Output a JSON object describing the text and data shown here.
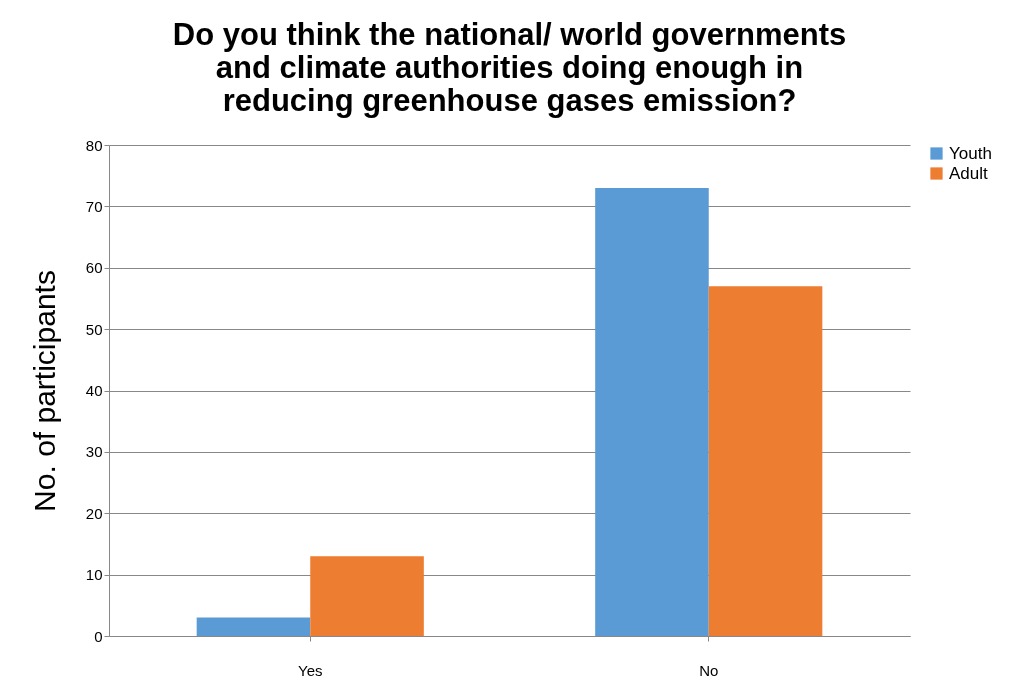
{
  "chart_data": {
    "type": "bar",
    "title": "Do you think the national/ world governments and climate authorities doing enough in reducing greenhouse gases emission?",
    "ylabel": "No. of participants",
    "categories": [
      "Yes",
      "No"
    ],
    "series": [
      {
        "name": "Youth",
        "color": "#5b9bd5",
        "values": [
          3,
          73
        ]
      },
      {
        "name": "Adult",
        "color": "#ed7d31",
        "values": [
          13,
          57
        ]
      }
    ],
    "ylim": [
      0,
      80
    ],
    "yticks": [
      0,
      10,
      20,
      30,
      40,
      50,
      60,
      70,
      80
    ],
    "grid": "y",
    "legend": "right"
  }
}
